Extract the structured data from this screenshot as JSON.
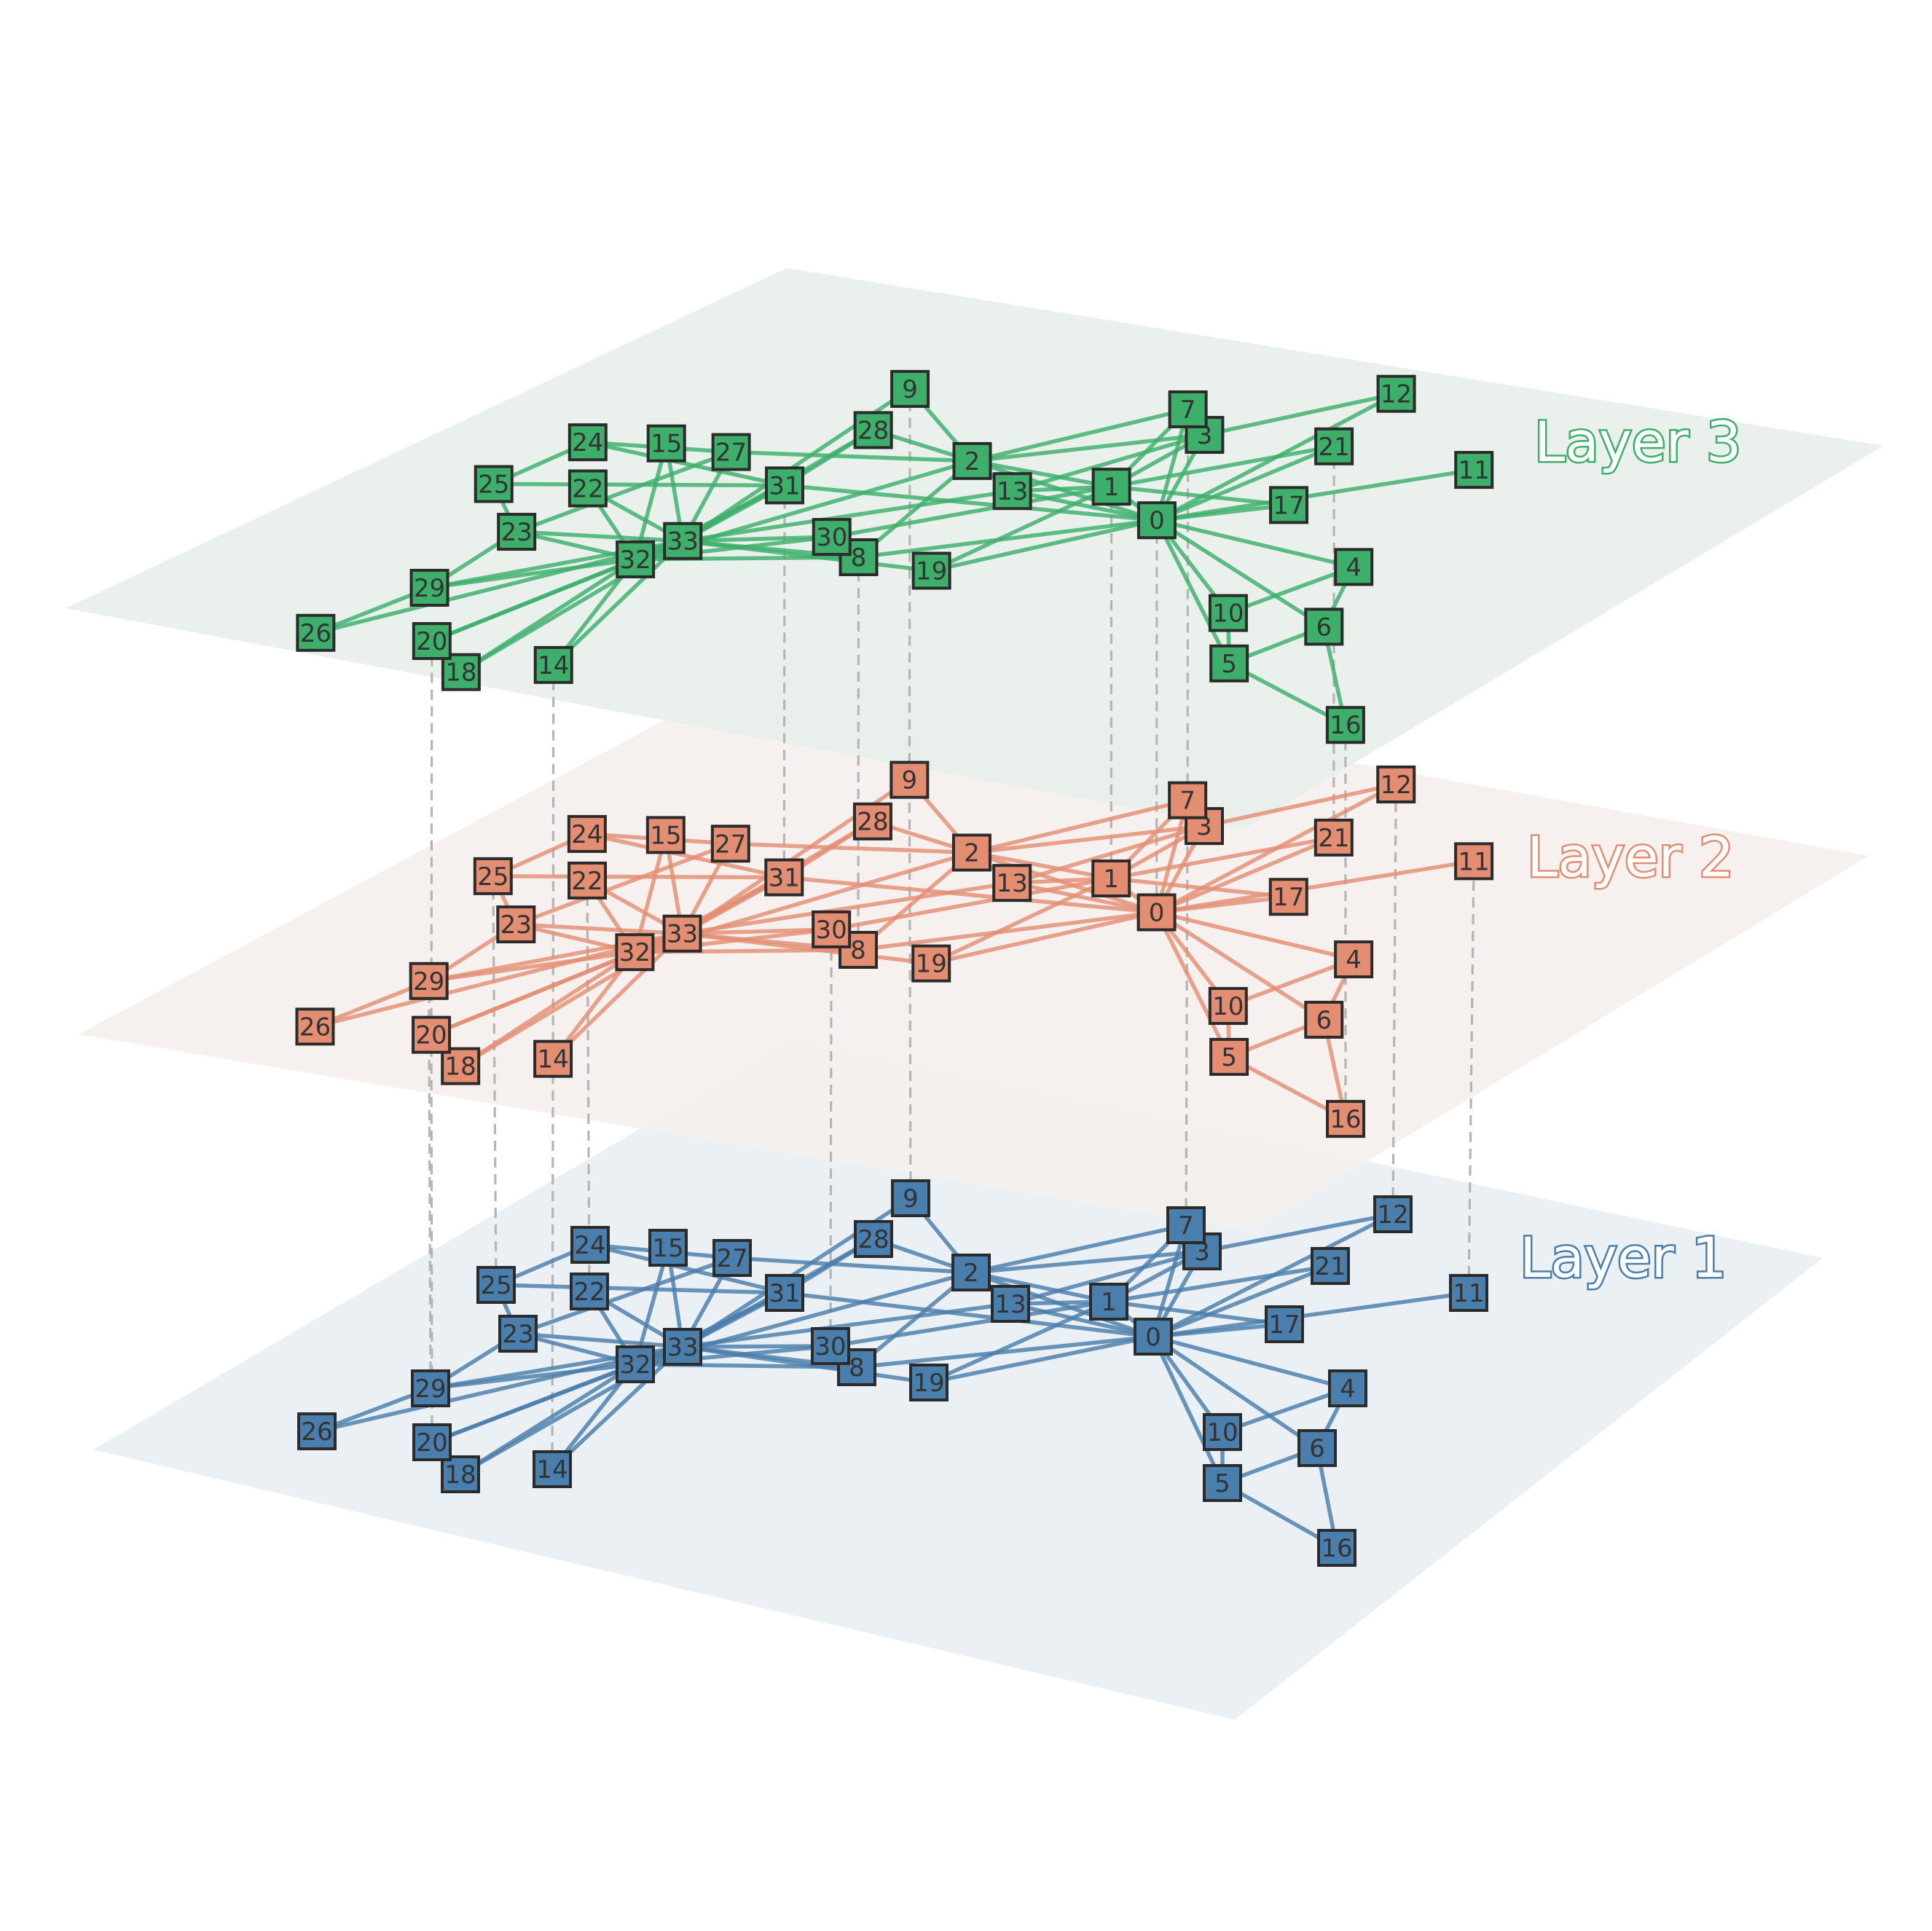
{
  "layers": [
    {
      "id": "layer1",
      "title": "Layer 1",
      "color": "#4a7eac",
      "plane_color": "#e9eef3",
      "edge_color": "#4a7eac"
    },
    {
      "id": "layer2",
      "title": "Layer 2",
      "color": "#e38d73",
      "plane_color": "#f5efed",
      "edge_color": "#e38d73"
    },
    {
      "id": "layer3",
      "title": "Layer 3",
      "color": "#3daf6b",
      "plane_color": "#e8f0eb",
      "edge_color": "#3daf6b"
    }
  ],
  "nodes": [
    "0",
    "1",
    "2",
    "3",
    "4",
    "5",
    "6",
    "7",
    "8",
    "9",
    "10",
    "11",
    "12",
    "13",
    "14",
    "15",
    "16",
    "17",
    "18",
    "19",
    "20",
    "21",
    "22",
    "23",
    "24",
    "25",
    "26",
    "27",
    "28",
    "29",
    "30",
    "31",
    "32",
    "33"
  ],
  "edges": [
    [
      "0",
      "1"
    ],
    [
      "0",
      "2"
    ],
    [
      "0",
      "3"
    ],
    [
      "0",
      "4"
    ],
    [
      "0",
      "5"
    ],
    [
      "0",
      "6"
    ],
    [
      "0",
      "7"
    ],
    [
      "0",
      "8"
    ],
    [
      "0",
      "10"
    ],
    [
      "0",
      "11"
    ],
    [
      "0",
      "12"
    ],
    [
      "0",
      "13"
    ],
    [
      "0",
      "17"
    ],
    [
      "0",
      "19"
    ],
    [
      "0",
      "21"
    ],
    [
      "0",
      "31"
    ],
    [
      "1",
      "2"
    ],
    [
      "1",
      "3"
    ],
    [
      "1",
      "7"
    ],
    [
      "1",
      "13"
    ],
    [
      "1",
      "17"
    ],
    [
      "1",
      "19"
    ],
    [
      "1",
      "21"
    ],
    [
      "1",
      "30"
    ],
    [
      "2",
      "3"
    ],
    [
      "2",
      "7"
    ],
    [
      "2",
      "8"
    ],
    [
      "2",
      "9"
    ],
    [
      "2",
      "13"
    ],
    [
      "2",
      "27"
    ],
    [
      "2",
      "28"
    ],
    [
      "2",
      "32"
    ],
    [
      "3",
      "7"
    ],
    [
      "3",
      "12"
    ],
    [
      "3",
      "13"
    ],
    [
      "4",
      "6"
    ],
    [
      "4",
      "10"
    ],
    [
      "5",
      "6"
    ],
    [
      "5",
      "10"
    ],
    [
      "5",
      "16"
    ],
    [
      "6",
      "16"
    ],
    [
      "8",
      "30"
    ],
    [
      "8",
      "32"
    ],
    [
      "8",
      "33"
    ],
    [
      "9",
      "33"
    ],
    [
      "13",
      "33"
    ],
    [
      "14",
      "32"
    ],
    [
      "14",
      "33"
    ],
    [
      "15",
      "32"
    ],
    [
      "15",
      "33"
    ],
    [
      "18",
      "32"
    ],
    [
      "18",
      "33"
    ],
    [
      "19",
      "33"
    ],
    [
      "20",
      "32"
    ],
    [
      "20",
      "33"
    ],
    [
      "22",
      "32"
    ],
    [
      "22",
      "33"
    ],
    [
      "23",
      "25"
    ],
    [
      "23",
      "27"
    ],
    [
      "23",
      "29"
    ],
    [
      "23",
      "32"
    ],
    [
      "23",
      "33"
    ],
    [
      "24",
      "25"
    ],
    [
      "24",
      "27"
    ],
    [
      "24",
      "31"
    ],
    [
      "25",
      "31"
    ],
    [
      "26",
      "29"
    ],
    [
      "26",
      "33"
    ],
    [
      "27",
      "33"
    ],
    [
      "28",
      "31"
    ],
    [
      "28",
      "33"
    ],
    [
      "29",
      "32"
    ],
    [
      "29",
      "33"
    ],
    [
      "30",
      "32"
    ],
    [
      "30",
      "33"
    ],
    [
      "31",
      "32"
    ],
    [
      "31",
      "33"
    ],
    [
      "32",
      "33"
    ]
  ],
  "interlayer_links": [
    {
      "node": "9",
      "layers": [
        1,
        2,
        3
      ]
    },
    {
      "node": "8",
      "layers": [
        2,
        3
      ]
    },
    {
      "node": "31",
      "layers": [
        2,
        3
      ]
    },
    {
      "node": "1",
      "layers": [
        2,
        3
      ]
    },
    {
      "node": "0",
      "layers": [
        2,
        3
      ]
    },
    {
      "node": "7",
      "layers": [
        1,
        2,
        3
      ]
    },
    {
      "node": "20",
      "layers": [
        1,
        2,
        3
      ]
    },
    {
      "node": "14",
      "layers": [
        1,
        2,
        3
      ]
    },
    {
      "node": "21",
      "layers": [
        2,
        3
      ]
    },
    {
      "node": "16",
      "layers": [
        2,
        3
      ]
    },
    {
      "node": "25",
      "layers": [
        1,
        2
      ]
    },
    {
      "node": "22",
      "layers": [
        1,
        2
      ]
    },
    {
      "node": "30",
      "layers": [
        1,
        2
      ]
    },
    {
      "node": "12",
      "layers": [
        1,
        2
      ]
    },
    {
      "node": "11",
      "layers": [
        1,
        2
      ]
    },
    {
      "node": "29",
      "layers": [
        1,
        2
      ]
    }
  ]
}
